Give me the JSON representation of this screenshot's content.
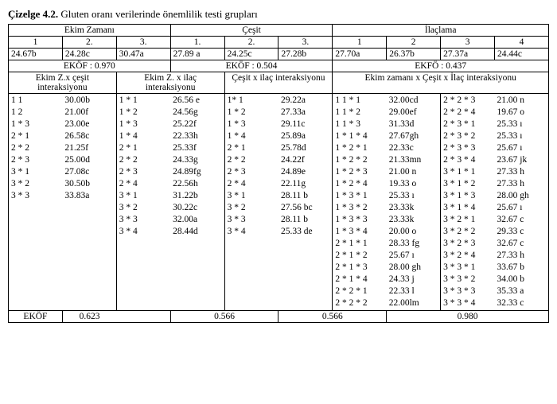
{
  "caption_label": "Çizelge 4.2.",
  "caption_text": "  Gluten oranı verilerinde önemlilik testi grupları",
  "top": {
    "ekim_zamani": "Ekim  Zamanı",
    "cesit": "Çeşit",
    "ilaclama": "İlaçlama",
    "ez_cols": [
      "1",
      "2.",
      "3."
    ],
    "c_cols": [
      "1.",
      "2.",
      "3."
    ],
    "i_cols": [
      "1",
      "2",
      "3",
      "4"
    ],
    "ez_vals": [
      "24.67b",
      "24.28c",
      "30.47a"
    ],
    "c_vals": [
      "27.89 a",
      "24.25c",
      "27.28b"
    ],
    "i_vals": [
      "27.70a",
      "26.37b",
      "27.37a",
      "24.44c"
    ],
    "ekof_ez": "EKÖF : 0.970",
    "ekof_c": "EKÖF : 0.504",
    "ekof_i": "EKFÖ : 0.437"
  },
  "mid_headers": {
    "h1": "Ekim Z.x çeşit interaksiyonu",
    "h2": "Ekim Z. x ilaç interaksiyonu",
    "h3": "Çeşit x ilaç interaksiyonu",
    "h4": "Ekim zamanı x Çeşit x İlaç interaksiyonu"
  },
  "rows": [
    {
      "a1": "1   1",
      "a2": "30.00b",
      "b1": "1  *  1",
      "b2": "26.56 e",
      "c1": "1*  1",
      "c2": "29.22a",
      "d1": "1 1 * 1",
      "d2": "32.00cd",
      "e1": "2 * 2 * 3",
      "e2": "21.00 n"
    },
    {
      "a1": "1   2",
      "a2": "21.00f",
      "b1": "1  *  2",
      "b2": "24.56g",
      "c1": "1  *  2",
      "c2": "27.33a",
      "d1": "1 1 * 2",
      "d2": "29.00ef",
      "e1": "2 * 2 * 4",
      "e2": "19.67 o"
    },
    {
      "a1": "1  *  3",
      "a2": "23.00e",
      "b1": "1  *  3",
      "b2": "25.22f",
      "c1": "1  *  3",
      "c2": "29.11c",
      "d1": "1 1 * 3",
      "d2": "31.33d",
      "e1": "2 * 3 * 1",
      "e2": "25.33 ı"
    },
    {
      "a1": "2  *  1",
      "a2": "26.58c",
      "b1": "1  *  4",
      "b2": "22.33h",
      "c1": "1  *  4",
      "c2": "25.89a",
      "d1": "1 * 1 * 4",
      "d2": "27.67gh",
      "e1": "2 * 3 * 2",
      "e2": "25.33 ı"
    },
    {
      "a1": "2  *  2",
      "a2": "21.25f",
      "b1": "2  *  1",
      "b2": "25.33f",
      "c1": "2  *  1",
      "c2": "25.78d",
      "d1": "1 * 2 * 1",
      "d2": "22.33c",
      "e1": "2 * 3 * 3",
      "e2": "25.67 ı"
    },
    {
      "a1": "2  *  3",
      "a2": "25.00d",
      "b1": "2  *  2",
      "b2": "24.33g",
      "c1": "2  *  2",
      "c2": "24.22f",
      "d1": "1 * 2 * 2",
      "d2": "21.33mn",
      "e1": "2 * 3 * 4",
      "e2": "23.67 jk"
    },
    {
      "a1": "3  *  1",
      "a2": "27.08c",
      "b1": "2  *  3",
      "b2": "24.89fg",
      "c1": "2  *  3",
      "c2": "24.89e",
      "d1": "1 * 2 * 3",
      "d2": "21.00 n",
      "e1": "3 * 1 * 1",
      "e2": "27.33 h"
    },
    {
      "a1": "3  *  2",
      "a2": "30.50b",
      "b1": "2  *  4",
      "b2": "22.56h",
      "c1": "2  *  4",
      "c2": "22.11g",
      "d1": "1 * 2 * 4",
      "d2": "19.33 o",
      "e1": "3 * 1 * 2",
      "e2": "27.33 h"
    },
    {
      "a1": "3  *  3",
      "a2": "33.83a",
      "b1": "3  *  1",
      "b2": "31.22b",
      "c1": "3  *  1",
      "c2": "28.11 b",
      "d1": "1 * 3 * 1",
      "d2": "25.33 ı",
      "e1": "3 * 1 * 3",
      "e2": "28.00 gh"
    },
    {
      "a1": "",
      "a2": "",
      "b1": "3  *  2",
      "b2": "30.22c",
      "c1": "3  *  2",
      "c2": "27.56 bc",
      "d1": "1 * 3 * 2",
      "d2": "23.33k",
      "e1": "3 * 1 * 4",
      "e2": "25.67 ı"
    },
    {
      "a1": "",
      "a2": "",
      "b1": "3  *  3",
      "b2": "32.00a",
      "c1": "3  *  3",
      "c2": "28.11 b",
      "d1": "1 * 3 * 3",
      "d2": "23.33k",
      "e1": "3 * 2 * 1",
      "e2": "32.67 c"
    },
    {
      "a1": "",
      "a2": "",
      "b1": "3  *  4",
      "b2": "28.44d",
      "c1": "3  *  4",
      "c2": "25.33 de",
      "d1": "1 * 3 * 4",
      "d2": "20.00 o",
      "e1": "3 * 2 * 2",
      "e2": "29.33 c"
    },
    {
      "a1": "",
      "a2": "",
      "b1": "",
      "b2": "",
      "c1": "",
      "c2": "",
      "d1": "2 * 1 * 1",
      "d2": "28.33 fg",
      "e1": "3 * 2 * 3",
      "e2": "32.67 c"
    },
    {
      "a1": "",
      "a2": "",
      "b1": "",
      "b2": "",
      "c1": "",
      "c2": "",
      "d1": "2 * 1 * 2",
      "d2": "25.67 ı",
      "e1": "3 * 2 * 4",
      "e2": "27.33 h"
    },
    {
      "a1": "",
      "a2": "",
      "b1": "",
      "b2": "",
      "c1": "",
      "c2": "",
      "d1": "2 * 1 * 3",
      "d2": "28.00 gh",
      "e1": "3 * 3 * 1",
      "e2": "33.67 b"
    },
    {
      "a1": "",
      "a2": "",
      "b1": "",
      "b2": "",
      "c1": "",
      "c2": "",
      "d1": "2 * 1 * 4",
      "d2": "24.33 j",
      "e1": "3 * 3 * 2",
      "e2": "34.00 b"
    },
    {
      "a1": "",
      "a2": "",
      "b1": "",
      "b2": "",
      "c1": "",
      "c2": "",
      "d1": "2 * 2 * 1",
      "d2": "22.33 l",
      "e1": "3 * 3 * 3",
      "e2": "35.33 a"
    },
    {
      "a1": "",
      "a2": "",
      "b1": "",
      "b2": "",
      "c1": "",
      "c2": "",
      "d1": "2 * 2 * 2",
      "d2": "22.00lm",
      "e1": "3 * 3 * 4",
      "e2": "32.33 c"
    }
  ],
  "bottom": {
    "label": "EKÖF",
    "v1": "0.623",
    "v2": "0.566",
    "v3": "0.566",
    "v4": "0.980"
  },
  "footnote": ""
}
